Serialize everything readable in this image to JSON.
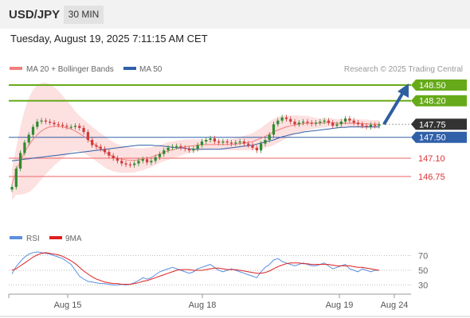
{
  "header": {
    "pair": "USD/JPY",
    "timeframe": "30 MIN",
    "datetime": "Tuesday, August 19, 2025 7:11:15 AM CET"
  },
  "legend": {
    "ma20_label": "MA 20 + Bollinger Bands",
    "ma50_label": "MA 50",
    "research": "Research © 2025 Trading Central",
    "rsi_label": "RSI",
    "ma9_label": "9MA"
  },
  "colors": {
    "resistance": "#66aa1a",
    "support": "#f08080",
    "ma50": "#3060a8",
    "ma20": "#f08080",
    "band_fill": "#fde0e0",
    "last_price_bg": "#333333",
    "arrow": "#2f5f9f",
    "candle_up": "#2e8b2e",
    "candle_down": "#d23a3a",
    "rsi_line": "#5b8fe0",
    "rsi_ma": "#dd2020"
  },
  "chart_data": [
    {
      "type": "candlestick",
      "name": "price",
      "ylim": [
        146.3,
        148.7
      ],
      "x_ticks": [
        "Aug 15",
        "Aug 18",
        "Aug 19",
        "Aug 24"
      ],
      "levels": [
        {
          "value": 148.5,
          "label": "148.50",
          "kind": "resistance"
        },
        {
          "value": 148.2,
          "label": "148.20",
          "kind": "resistance"
        },
        {
          "value": 147.75,
          "label": "147.75",
          "kind": "last"
        },
        {
          "value": 147.5,
          "label": "147.50",
          "kind": "pivot"
        },
        {
          "value": 147.1,
          "label": "147.10",
          "kind": "support"
        },
        {
          "value": 146.75,
          "label": "146.75",
          "kind": "support"
        }
      ],
      "close": [
        146.55,
        146.9,
        147.2,
        147.4,
        147.55,
        147.7,
        147.8,
        147.82,
        147.8,
        147.78,
        147.75,
        147.74,
        147.72,
        147.7,
        147.7,
        147.72,
        147.68,
        147.6,
        147.45,
        147.35,
        147.32,
        147.28,
        147.22,
        147.15,
        147.1,
        147.05,
        147.0,
        146.98,
        146.97,
        147.0,
        147.05,
        147.08,
        147.02,
        147.05,
        147.12,
        147.18,
        147.25,
        147.3,
        147.32,
        147.33,
        147.3,
        147.28,
        147.25,
        147.28,
        147.35,
        147.42,
        147.45,
        147.48,
        147.42,
        147.4,
        147.42,
        147.4,
        147.38,
        147.4,
        147.42,
        147.38,
        147.35,
        147.3,
        147.25,
        147.38,
        147.45,
        147.55,
        147.75,
        147.82,
        147.88,
        147.85,
        147.8,
        147.75,
        147.78,
        147.8,
        147.78,
        147.76,
        147.78,
        147.8,
        147.82,
        147.78,
        147.72,
        147.75,
        147.8,
        147.86,
        147.82,
        147.78,
        147.75,
        147.72,
        147.7,
        147.74,
        147.72,
        147.75
      ],
      "ma20": [
        146.6,
        146.85,
        147.05,
        147.22,
        147.35,
        147.46,
        147.55,
        147.62,
        147.67,
        147.7,
        147.71,
        147.71,
        147.7,
        147.68,
        147.66,
        147.62,
        147.57,
        147.52,
        147.46,
        147.4,
        147.34,
        147.28,
        147.22,
        147.17,
        147.13,
        147.1,
        147.08,
        147.07,
        147.06,
        147.06,
        147.07,
        147.08,
        147.1,
        147.12,
        147.15,
        147.18,
        147.21,
        147.24,
        147.26,
        147.28,
        147.3,
        147.32,
        147.33,
        147.34,
        147.35,
        147.36,
        147.36,
        147.36,
        147.36,
        147.36,
        147.36,
        147.36,
        147.36,
        147.37,
        147.38,
        147.39,
        147.4,
        147.42,
        147.45,
        147.48,
        147.52,
        147.56,
        147.6,
        147.64,
        147.67,
        147.7,
        147.72,
        147.74,
        147.75,
        147.76,
        147.77,
        147.77,
        147.77,
        147.77,
        147.78,
        147.78,
        147.78,
        147.77,
        147.77,
        147.77,
        147.77,
        147.77,
        147.77,
        147.76,
        147.76,
        147.75,
        147.75,
        147.75
      ],
      "ma50": [
        147.05,
        147.06,
        147.07,
        147.08,
        147.09,
        147.1,
        147.11,
        147.12,
        147.13,
        147.14,
        147.15,
        147.16,
        147.17,
        147.18,
        147.19,
        147.2,
        147.21,
        147.22,
        147.23,
        147.24,
        147.25,
        147.26,
        147.27,
        147.28,
        147.29,
        147.3,
        147.31,
        147.32,
        147.33,
        147.34,
        147.35,
        147.35,
        147.35,
        147.35,
        147.34,
        147.34,
        147.33,
        147.32,
        147.31,
        147.3,
        147.3,
        147.29,
        147.28,
        147.27,
        147.27,
        147.27,
        147.27,
        147.27,
        147.27,
        147.27,
        147.28,
        147.29,
        147.3,
        147.31,
        147.32,
        147.33,
        147.34,
        147.35,
        147.37,
        147.39,
        147.41,
        147.43,
        147.45,
        147.48,
        147.51,
        147.53,
        147.55,
        147.57,
        147.58,
        147.6,
        147.61,
        147.62,
        147.63,
        147.64,
        147.65,
        147.66,
        147.67,
        147.68,
        147.69,
        147.69,
        147.7,
        147.7,
        147.7,
        147.7,
        147.7,
        147.7,
        147.7,
        147.7
      ],
      "band_width": [
        0.3,
        0.45,
        0.65,
        0.8,
        0.9,
        0.95,
        0.95,
        0.92,
        0.88,
        0.82,
        0.75,
        0.68,
        0.6,
        0.52,
        0.45,
        0.38,
        0.34,
        0.32,
        0.31,
        0.3,
        0.3,
        0.3,
        0.3,
        0.29,
        0.28,
        0.27,
        0.26,
        0.25,
        0.24,
        0.23,
        0.22,
        0.21,
        0.2,
        0.19,
        0.18,
        0.17,
        0.17,
        0.17,
        0.16,
        0.16,
        0.15,
        0.14,
        0.13,
        0.12,
        0.11,
        0.1,
        0.1,
        0.09,
        0.09,
        0.09,
        0.1,
        0.1,
        0.11,
        0.12,
        0.13,
        0.14,
        0.15,
        0.16,
        0.18,
        0.2,
        0.22,
        0.24,
        0.25,
        0.25,
        0.24,
        0.22,
        0.2,
        0.18,
        0.17,
        0.15,
        0.14,
        0.12,
        0.1,
        0.09,
        0.09,
        0.08,
        0.08,
        0.08,
        0.08,
        0.08,
        0.08,
        0.08,
        0.08,
        0.08,
        0.08,
        0.08,
        0.08,
        0.08
      ]
    },
    {
      "type": "line",
      "name": "rsi",
      "ylim": [
        20,
        80
      ],
      "y_ticks": [
        70,
        50,
        30
      ],
      "rsi": [
        45,
        55,
        62,
        68,
        72,
        74,
        75,
        74,
        73,
        72,
        70,
        68,
        66,
        62,
        58,
        50,
        42,
        38,
        35,
        34,
        33,
        32,
        32,
        31,
        30,
        30,
        31,
        30,
        31,
        33,
        36,
        40,
        38,
        40,
        44,
        48,
        50,
        52,
        54,
        52,
        50,
        48,
        46,
        48,
        52,
        54,
        56,
        58,
        54,
        50,
        48,
        50,
        52,
        50,
        48,
        46,
        44,
        42,
        40,
        48,
        54,
        58,
        64,
        66,
        62,
        60,
        58,
        56,
        58,
        60,
        58,
        56,
        56,
        58,
        60,
        56,
        52,
        54,
        56,
        58,
        52,
        50,
        48,
        52,
        50,
        48,
        50,
        50
      ],
      "ma9": [
        50,
        52,
        56,
        60,
        64,
        68,
        71,
        73,
        74,
        73,
        72,
        71,
        69,
        66,
        63,
        59,
        54,
        49,
        45,
        41,
        38,
        36,
        34,
        33,
        32,
        32,
        31,
        31,
        31,
        32,
        33,
        35,
        36,
        38,
        40,
        42,
        44,
        46,
        48,
        50,
        51,
        51,
        51,
        50,
        50,
        50,
        51,
        52,
        53,
        53,
        52,
        51,
        51,
        51,
        50,
        49,
        48,
        47,
        46,
        46,
        47,
        49,
        52,
        55,
        57,
        59,
        60,
        60,
        60,
        59,
        59,
        58,
        58,
        58,
        58,
        58,
        57,
        56,
        56,
        56,
        56,
        55,
        54,
        54,
        53,
        52,
        51,
        50
      ]
    }
  ]
}
